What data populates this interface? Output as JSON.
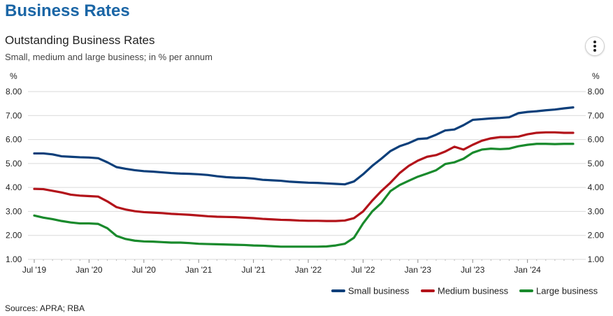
{
  "header": {
    "page_title": "Business Rates",
    "menu_icon": "vertical-ellipsis-icon"
  },
  "source": "Sources: APRA; RBA",
  "colors": {
    "title": "#1b66a6",
    "small": "#0d3f7a",
    "medium": "#b3131a",
    "large": "#198a2c",
    "grid": "#d9d9d9"
  },
  "chart_data": {
    "type": "line",
    "title": "Outstanding Business Rates",
    "subtitle": "Small, medium and large business; in % per annum",
    "ylabel_left": "%",
    "ylabel_right": "%",
    "ylim": [
      1.0,
      8.0
    ],
    "yticks": [
      "8.00",
      "7.00",
      "6.00",
      "5.00",
      "4.00",
      "3.00",
      "2.00",
      "1.00"
    ],
    "ytick_values": [
      8,
      7,
      6,
      5,
      4,
      3,
      2,
      1
    ],
    "xticks": [
      "Jul '19",
      "Jan '20",
      "Jul '20",
      "Jan '21",
      "Jul '21",
      "Jan '22",
      "Jul '22",
      "Jan '23",
      "Jul '23",
      "Jan '24"
    ],
    "x": [
      "2019-07",
      "2019-08",
      "2019-09",
      "2019-10",
      "2019-11",
      "2019-12",
      "2020-01",
      "2020-02",
      "2020-03",
      "2020-04",
      "2020-05",
      "2020-06",
      "2020-07",
      "2020-08",
      "2020-09",
      "2020-10",
      "2020-11",
      "2020-12",
      "2021-01",
      "2021-02",
      "2021-03",
      "2021-04",
      "2021-05",
      "2021-06",
      "2021-07",
      "2021-08",
      "2021-09",
      "2021-10",
      "2021-11",
      "2021-12",
      "2022-01",
      "2022-02",
      "2022-03",
      "2022-04",
      "2022-05",
      "2022-06",
      "2022-07",
      "2022-08",
      "2022-09",
      "2022-10",
      "2022-11",
      "2022-12",
      "2023-01",
      "2023-02",
      "2023-03",
      "2023-04",
      "2023-05",
      "2023-06",
      "2023-07",
      "2023-08",
      "2023-09",
      "2023-10",
      "2023-11",
      "2023-12",
      "2024-01",
      "2024-02",
      "2024-03",
      "2024-04",
      "2024-05",
      "2024-06"
    ],
    "grid": true,
    "legend_position": "bottom-right",
    "series": [
      {
        "name": "Small business",
        "color": "#0d3f7a",
        "values": [
          5.42,
          5.42,
          5.38,
          5.3,
          5.28,
          5.26,
          5.25,
          5.22,
          5.05,
          4.85,
          4.78,
          4.72,
          4.68,
          4.66,
          4.63,
          4.6,
          4.58,
          4.57,
          4.55,
          4.52,
          4.47,
          4.43,
          4.41,
          4.4,
          4.37,
          4.32,
          4.3,
          4.28,
          4.24,
          4.22,
          4.2,
          4.19,
          4.17,
          4.15,
          4.13,
          4.25,
          4.55,
          4.9,
          5.2,
          5.52,
          5.72,
          5.85,
          6.02,
          6.05,
          6.2,
          6.38,
          6.42,
          6.6,
          6.82,
          6.85,
          6.88,
          6.9,
          6.93,
          7.1,
          7.15,
          7.18,
          7.22,
          7.25,
          7.3,
          7.34
        ]
      },
      {
        "name": "Medium business",
        "color": "#b3131a",
        "values": [
          3.94,
          3.93,
          3.86,
          3.79,
          3.7,
          3.66,
          3.64,
          3.62,
          3.42,
          3.18,
          3.08,
          3.01,
          2.97,
          2.95,
          2.93,
          2.9,
          2.88,
          2.86,
          2.83,
          2.8,
          2.78,
          2.77,
          2.76,
          2.74,
          2.72,
          2.69,
          2.67,
          2.65,
          2.64,
          2.62,
          2.61,
          2.61,
          2.6,
          2.6,
          2.62,
          2.72,
          3.0,
          3.45,
          3.85,
          4.2,
          4.6,
          4.9,
          5.12,
          5.28,
          5.35,
          5.5,
          5.7,
          5.58,
          5.78,
          5.95,
          6.05,
          6.1,
          6.1,
          6.12,
          6.22,
          6.28,
          6.3,
          6.3,
          6.28,
          6.28
        ]
      },
      {
        "name": "Large business",
        "color": "#198a2c",
        "values": [
          2.83,
          2.74,
          2.68,
          2.6,
          2.54,
          2.5,
          2.5,
          2.48,
          2.3,
          1.98,
          1.85,
          1.78,
          1.75,
          1.74,
          1.72,
          1.7,
          1.7,
          1.68,
          1.65,
          1.64,
          1.63,
          1.62,
          1.61,
          1.6,
          1.58,
          1.57,
          1.55,
          1.53,
          1.53,
          1.53,
          1.53,
          1.53,
          1.54,
          1.58,
          1.65,
          1.9,
          2.5,
          3.0,
          3.35,
          3.85,
          4.1,
          4.28,
          4.45,
          4.58,
          4.72,
          4.98,
          5.05,
          5.2,
          5.45,
          5.58,
          5.62,
          5.6,
          5.62,
          5.72,
          5.78,
          5.82,
          5.82,
          5.81,
          5.82,
          5.82
        ]
      }
    ]
  }
}
